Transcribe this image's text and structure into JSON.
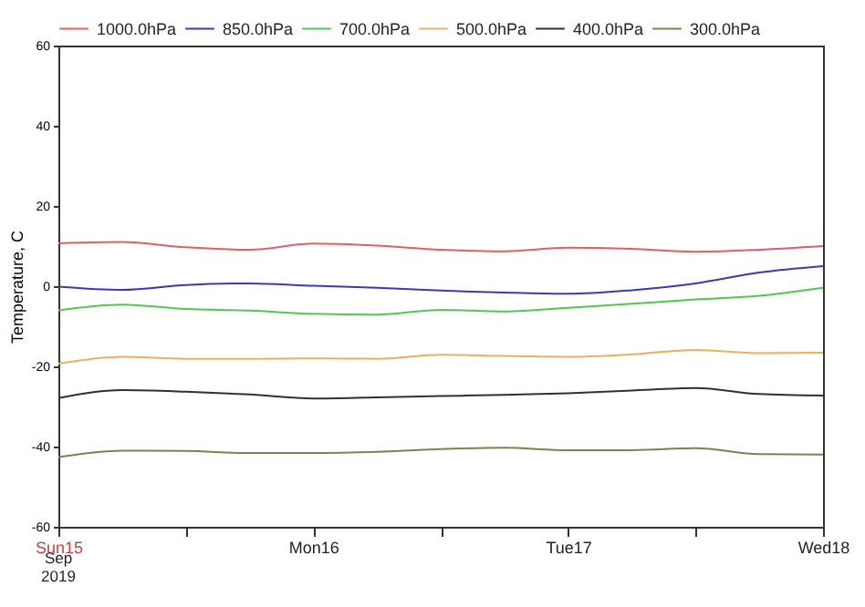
{
  "chart_data": {
    "type": "line",
    "ylabel": "Temperature, C",
    "x": [
      "2019-09-15T00:00",
      "2019-09-15T06:00",
      "2019-09-15T12:00",
      "2019-09-15T18:00",
      "2019-09-16T00:00",
      "2019-09-16T06:00",
      "2019-09-16T12:00",
      "2019-09-16T18:00",
      "2019-09-17T00:00",
      "2019-09-17T06:00",
      "2019-09-17T12:00",
      "2019-09-17T18:00",
      "2019-09-18T00:00"
    ],
    "series": [
      {
        "name": "1000.0hPa",
        "color": "#e06060",
        "values": [
          10.7,
          11,
          9.7,
          9.1,
          10.6,
          10.1,
          9.1,
          8.7,
          9.6,
          9.3,
          8.6,
          9.1,
          10.0
        ]
      },
      {
        "name": "850.0hPa",
        "color": "#3a3ab8",
        "values": [
          -0.1,
          -0.9,
          0.3,
          0.7,
          0.1,
          -0.4,
          -1.1,
          -1.6,
          -1.9,
          -1,
          0.7,
          3.4,
          5.0
        ]
      },
      {
        "name": "700.0hPa",
        "color": "#50c850",
        "values": [
          -6,
          -4.6,
          -5.7,
          -6.1,
          -6.9,
          -7.1,
          -5.9,
          -6.3,
          -5.4,
          -4.4,
          -3.3,
          -2.4,
          -0.4
        ]
      },
      {
        "name": "500.0hPa",
        "color": "#e8b060",
        "values": [
          -19.3,
          -17.6,
          -18.1,
          -18.1,
          -18,
          -18.1,
          -17.1,
          -17.4,
          -17.6,
          -17,
          -15.9,
          -16.7,
          -16.6
        ]
      },
      {
        "name": "400.0hPa",
        "color": "#303038",
        "values": [
          -27.9,
          -25.9,
          -26.3,
          -27,
          -28,
          -27.7,
          -27.4,
          -27.1,
          -26.7,
          -26,
          -25.4,
          -26.9,
          -27.3
        ]
      },
      {
        "name": "300.0hPa",
        "color": "#808050",
        "values": [
          -42.6,
          -41,
          -41.1,
          -41.6,
          -41.6,
          -41.3,
          -40.6,
          -40.3,
          -40.9,
          -40.9,
          -40.4,
          -41.9,
          -42
        ]
      }
    ],
    "xlim": [
      "2019-09-15T00:00",
      "2019-09-18T00:00"
    ],
    "xticks": [
      {
        "value": "2019-09-15T00:00",
        "label": "Sun15"
      },
      {
        "value": "2019-09-15T12:00",
        "label": null
      },
      {
        "value": "2019-09-16T00:00",
        "label": "Mon16"
      },
      {
        "value": "2019-09-16T12:00",
        "label": null
      },
      {
        "value": "2019-09-17T00:00",
        "label": "Tue17"
      },
      {
        "value": "2019-09-17T12:00",
        "label": null
      },
      {
        "value": "2019-09-18T00:00",
        "label": "Wed18"
      }
    ],
    "ylim": [
      -60,
      60
    ],
    "yticks": [
      -60,
      -40,
      -20,
      0,
      20,
      40,
      60
    ],
    "annotations": [
      "Sep",
      "2019"
    ],
    "legend": "top",
    "grid": false,
    "marker": "none",
    "line_style": "solid"
  }
}
